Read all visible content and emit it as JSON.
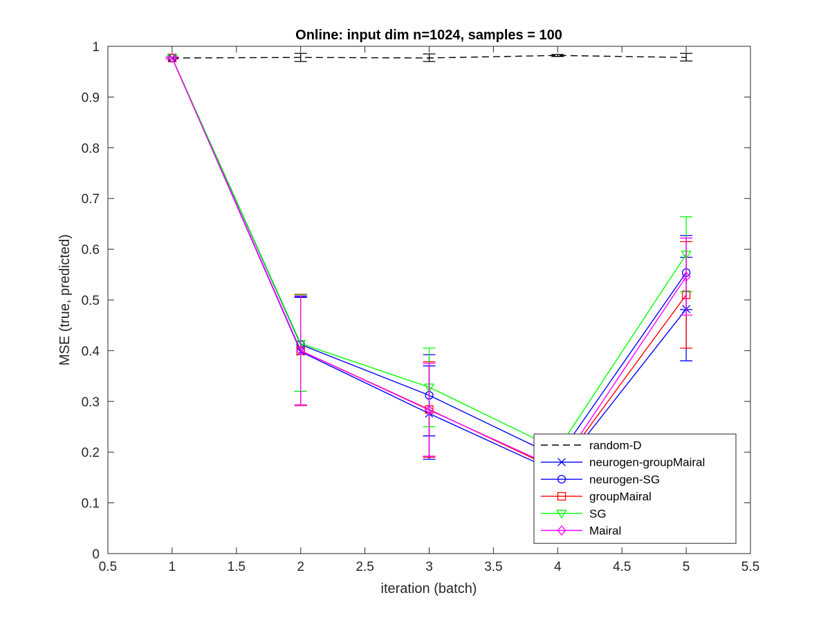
{
  "chart_data": {
    "type": "line",
    "title": "Online:  input dim n=1024, samples = 100",
    "xlabel": "iteration (batch)",
    "ylabel": "MSE (true, predicted)",
    "xlim": [
      0.5,
      5.5
    ],
    "ylim": [
      0,
      1
    ],
    "xticks": [
      0.5,
      1,
      1.5,
      2,
      2.5,
      3,
      3.5,
      4,
      4.5,
      5,
      5.5
    ],
    "yticks": [
      0,
      0.1,
      0.2,
      0.3,
      0.4,
      0.5,
      0.6,
      0.7,
      0.8,
      0.9,
      1
    ],
    "xtick_labels": [
      "0.5",
      "1",
      "1.5",
      "2",
      "2.5",
      "3",
      "3.5",
      "4",
      "4.5",
      "5",
      "5.5"
    ],
    "ytick_labels": [
      "0",
      "0.1",
      "0.2",
      "0.3",
      "0.4",
      "0.5",
      "0.6",
      "0.7",
      "0.8",
      "0.9",
      "1"
    ],
    "grid": false,
    "legend_position": "bottom-right",
    "x": [
      1,
      2,
      3,
      4,
      5
    ],
    "series": [
      {
        "name": "random-D",
        "color": "#000000",
        "dash": "dashed",
        "marker": "none",
        "values": [
          0.977,
          0.978,
          0.977,
          0.982,
          0.978
        ],
        "err_low": [
          0.975,
          0.97,
          0.97,
          0.98,
          0.971
        ],
        "err_high": [
          0.979,
          0.986,
          0.985,
          0.984,
          0.986
        ]
      },
      {
        "name": "neurogen-groupMairal",
        "color": "#0000ff",
        "dash": "solid",
        "marker": "x",
        "values": [
          0.977,
          0.398,
          0.276,
          0.16,
          0.482
        ],
        "err_low": [
          0.975,
          0.292,
          0.186,
          0.15,
          0.38
        ],
        "err_high": [
          0.979,
          0.505,
          0.37,
          0.17,
          0.584
        ]
      },
      {
        "name": "neurogen-SG",
        "color": "#0000ff",
        "dash": "solid",
        "marker": "circle",
        "values": [
          0.977,
          0.412,
          0.312,
          0.19,
          0.554
        ],
        "err_low": [
          0.975,
          0.32,
          0.232,
          0.18,
          0.481
        ],
        "err_high": [
          0.979,
          0.507,
          0.392,
          0.2,
          0.627
        ]
      },
      {
        "name": "groupMairal",
        "color": "#ff0000",
        "dash": "solid",
        "marker": "square",
        "values": [
          0.977,
          0.4,
          0.284,
          0.165,
          0.51
        ],
        "err_low": [
          0.975,
          0.292,
          0.19,
          0.155,
          0.405
        ],
        "err_high": [
          0.979,
          0.511,
          0.378,
          0.175,
          0.615
        ]
      },
      {
        "name": "SG",
        "color": "#00ff00",
        "dash": "solid",
        "marker": "triangle-down",
        "values": [
          0.977,
          0.414,
          0.328,
          0.205,
          0.59
        ],
        "err_low": [
          0.975,
          0.32,
          0.25,
          0.195,
          0.516
        ],
        "err_high": [
          0.979,
          0.51,
          0.405,
          0.215,
          0.664
        ]
      },
      {
        "name": "Mairal",
        "color": "#ff00ff",
        "dash": "solid",
        "marker": "diamond",
        "values": [
          0.977,
          0.4,
          0.283,
          0.168,
          0.546
        ],
        "err_low": [
          0.975,
          0.293,
          0.192,
          0.158,
          0.47
        ],
        "err_high": [
          0.979,
          0.508,
          0.375,
          0.178,
          0.622
        ]
      }
    ]
  }
}
